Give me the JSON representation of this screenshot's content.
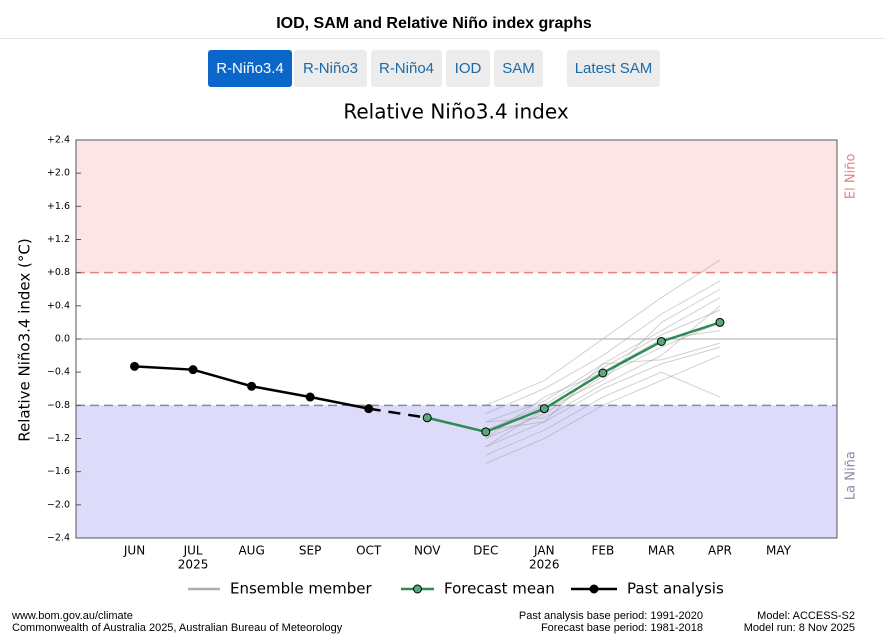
{
  "header": {
    "title": "IOD, SAM and Relative Niño index graphs"
  },
  "tabs": [
    {
      "label": "R-Niño3.4",
      "active": true
    },
    {
      "label": "R-Niño3",
      "active": false
    },
    {
      "label": "R-Niño4",
      "active": false
    },
    {
      "label": "IOD",
      "active": false
    },
    {
      "label": "SAM",
      "active": false
    },
    {
      "label": "Latest SAM",
      "active": false
    }
  ],
  "chart_data": {
    "type": "line",
    "title": "Relative Niño3.4 index",
    "y_label": "Relative Niño3.4 index (°C)",
    "categories": [
      "JUN",
      "JUL",
      "AUG",
      "SEP",
      "OCT",
      "NOV",
      "DEC",
      "JAN",
      "FEB",
      "MAR",
      "APR",
      "MAY"
    ],
    "category_years": [
      null,
      "2025",
      null,
      null,
      null,
      null,
      null,
      "2026",
      null,
      null,
      null,
      null
    ],
    "ylim": [
      -2.4,
      2.4
    ],
    "yticks": [
      {
        "value": 2.4,
        "label": "+2.4"
      },
      {
        "value": 2.0,
        "label": "+2.0"
      },
      {
        "value": 1.6,
        "label": "+1.6"
      },
      {
        "value": 1.2,
        "label": "+1.2"
      },
      {
        "value": 0.8,
        "label": "+0.8"
      },
      {
        "value": 0.4,
        "label": "+0.4"
      },
      {
        "value": 0,
        "label": "0.0"
      },
      {
        "value": -0.4,
        "label": "−0.4"
      },
      {
        "value": -0.8,
        "label": "−0.8"
      },
      {
        "value": -1.2,
        "label": "−1.2"
      },
      {
        "value": -1.6,
        "label": "−1.6"
      },
      {
        "value": -2.0,
        "label": "−2.0"
      },
      {
        "value": -2.4,
        "label": "−2.4"
      }
    ],
    "zero_line": true,
    "regions": [
      {
        "label": "El Niño",
        "threshold": 0.8,
        "side": "above",
        "color": "#fde5e5",
        "line_color": "#e08484"
      },
      {
        "label": "La Niña",
        "threshold": -0.8,
        "side": "below",
        "color": "#dcdcfa",
        "line_color": "#8a8aa8"
      }
    ],
    "series": [
      {
        "name": "Ensemble member",
        "color": "#999999",
        "members": [
          [
            null,
            null,
            null,
            null,
            null,
            null,
            -1.0,
            -0.75,
            -0.3,
            0.1,
            0.5,
            null
          ],
          [
            null,
            null,
            null,
            null,
            null,
            null,
            -1.2,
            -0.9,
            -0.45,
            -0.1,
            0.2,
            null
          ],
          [
            null,
            null,
            null,
            null,
            null,
            null,
            -1.3,
            -1.0,
            -0.6,
            -0.3,
            -0.1,
            null
          ],
          [
            null,
            null,
            null,
            null,
            null,
            null,
            -0.9,
            -0.6,
            -0.2,
            0.3,
            0.7,
            null
          ],
          [
            null,
            null,
            null,
            null,
            null,
            null,
            -1.5,
            -1.2,
            -0.8,
            -0.5,
            -0.2,
            null
          ],
          [
            null,
            null,
            null,
            null,
            null,
            null,
            -1.1,
            -0.8,
            -0.35,
            0.05,
            0.35,
            null
          ],
          [
            null,
            null,
            null,
            null,
            null,
            null,
            -0.8,
            -0.5,
            0.0,
            0.5,
            0.95,
            null
          ],
          [
            null,
            null,
            null,
            null,
            null,
            null,
            -1.4,
            -1.1,
            -0.7,
            -0.4,
            -0.7,
            null
          ],
          [
            null,
            null,
            null,
            null,
            null,
            null,
            -1.2,
            -0.7,
            -0.4,
            0.0,
            0.1,
            null
          ],
          [
            null,
            null,
            null,
            null,
            null,
            null,
            -1.0,
            -0.95,
            -0.55,
            -0.2,
            0.4,
            null
          ],
          [
            null,
            null,
            null,
            null,
            null,
            null,
            -1.3,
            -0.85,
            -0.5,
            0.2,
            0.6,
            null
          ],
          [
            null,
            null,
            null,
            null,
            null,
            null,
            -1.1,
            -1.0,
            -0.3,
            -0.25,
            -0.05,
            null
          ]
        ]
      },
      {
        "name": "Forecast mean",
        "color": "#2e8b57",
        "marker_color": "#5aa878",
        "values": [
          null,
          null,
          null,
          null,
          null,
          -0.95,
          -1.12,
          -0.84,
          -0.41,
          -0.03,
          0.2,
          null
        ]
      },
      {
        "name": "Past analysis",
        "color": "#000000",
        "values": [
          -0.33,
          -0.37,
          -0.57,
          -0.7,
          -0.84,
          null,
          null,
          null,
          null,
          null,
          null,
          null
        ]
      }
    ]
  },
  "footer": {
    "site": "www.bom.gov.au/climate",
    "copyright": "Commonwealth of Australia 2025, Australian Bureau of Meteorology",
    "past_base": "Past analysis base period: 1991-2020",
    "forecast_base": "Forecast base period: 1981-2018",
    "model": "Model: ACCESS-S2",
    "model_run": "Model run: 8 Nov 2025"
  }
}
